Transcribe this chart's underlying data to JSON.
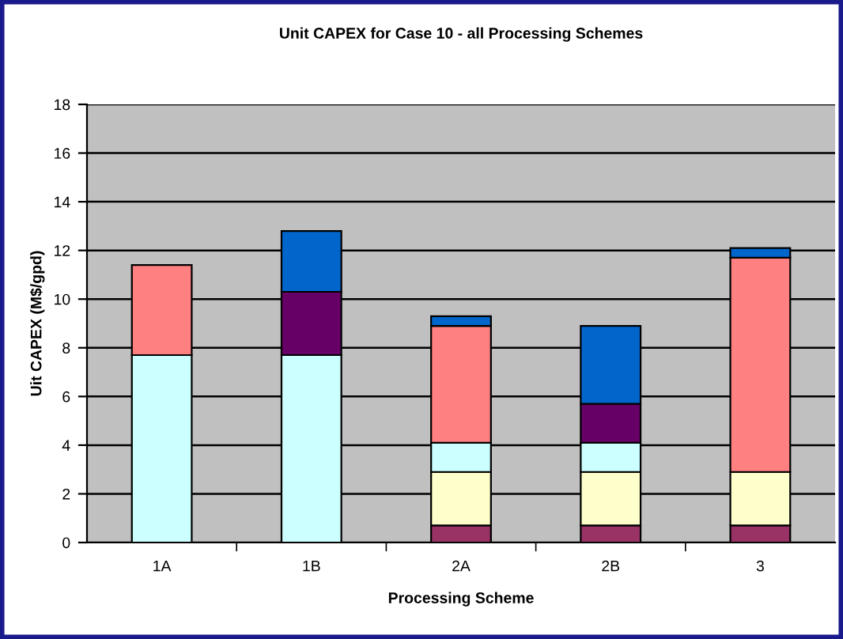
{
  "chart_data": {
    "type": "bar",
    "stacked": true,
    "title": "Unit CAPEX for Case 10 - all Processing Schemes",
    "xlabel": "Processing Scheme",
    "ylabel": "Uit CAPEX (M$/gpd)",
    "categories": [
      "1A",
      "1B",
      "2A",
      "2B",
      "3"
    ],
    "series": [
      {
        "color": "#993366",
        "values": [
          null,
          null,
          0.7,
          0.7,
          0.7
        ]
      },
      {
        "color": "#ffffcc",
        "values": [
          null,
          null,
          2.2,
          2.2,
          2.2
        ]
      },
      {
        "color": "#ccffff",
        "values": [
          7.7,
          7.7,
          1.2,
          1.2,
          null
        ]
      },
      {
        "color": "#ff8080",
        "values": [
          3.7,
          null,
          4.8,
          null,
          8.8
        ]
      },
      {
        "color": "#660066",
        "values": [
          null,
          2.6,
          null,
          1.6,
          null
        ]
      },
      {
        "color": "#0066cc",
        "values": [
          null,
          2.5,
          0.4,
          3.2,
          0.4
        ]
      }
    ],
    "ylim": [
      0,
      18
    ],
    "yticks": [
      0,
      2,
      4,
      6,
      8,
      10,
      12,
      14,
      16,
      18
    ],
    "grid": "y"
  }
}
